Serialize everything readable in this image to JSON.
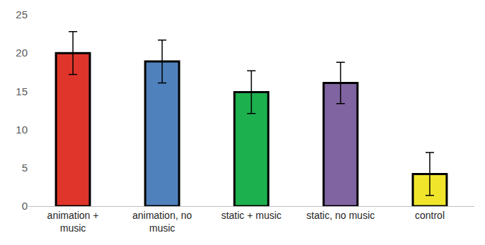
{
  "chart_data": {
    "type": "bar",
    "categories": [
      "animation + music",
      "animation, no music",
      "static + music",
      "static, no music",
      "control"
    ],
    "values": [
      20.0,
      18.9,
      14.9,
      16.1,
      4.2
    ],
    "errors": [
      2.8,
      2.8,
      2.8,
      2.7,
      2.8
    ],
    "colors": [
      "#e0352b",
      "#4f81bd",
      "#1db04f",
      "#8064a2",
      "#f0e52a"
    ],
    "ylim": [
      0,
      25
    ],
    "yticks": [
      0,
      5,
      10,
      15,
      20,
      25
    ],
    "grid": false
  }
}
